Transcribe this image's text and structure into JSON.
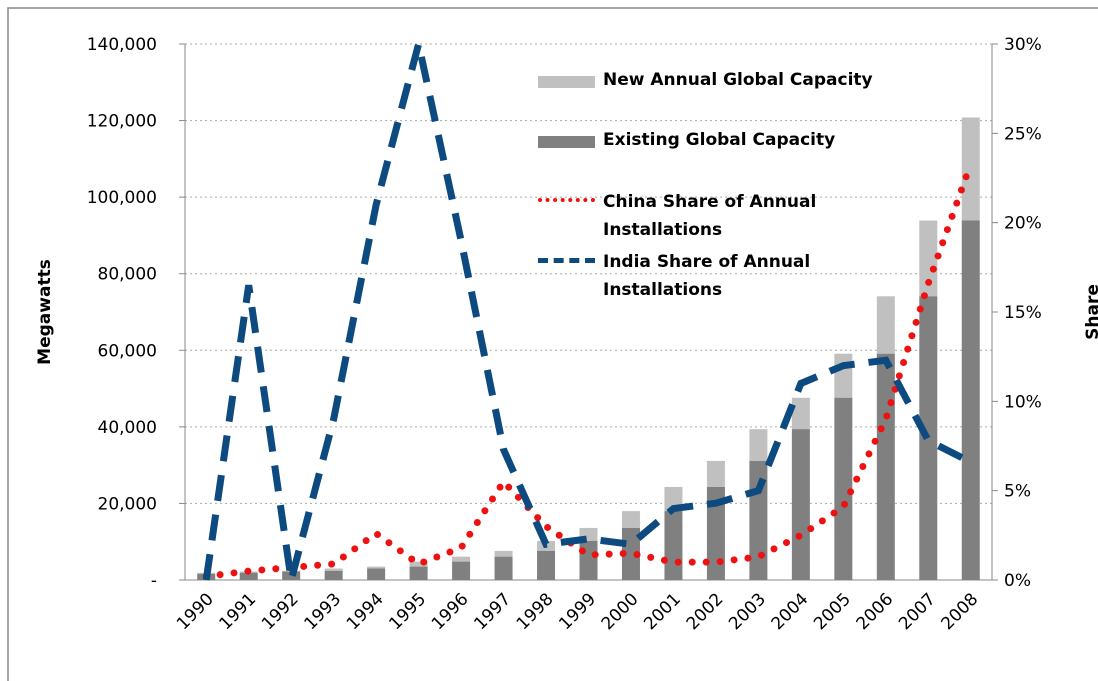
{
  "chart_data": {
    "type": "bar-line",
    "y_label": "Megawatts",
    "y2_label": "Share",
    "categories": [
      "1990",
      "1991",
      "1992",
      "1993",
      "1994",
      "1995",
      "1996",
      "1997",
      "1998",
      "1999",
      "2000",
      "2001",
      "2002",
      "2003",
      "2004",
      "2005",
      "2006",
      "2007",
      "2008"
    ],
    "series": [
      {
        "name": "New Annual Global Capacity",
        "color": "#c0c0c0",
        "kind": "bar",
        "stack": true,
        "values": [
          300,
          300,
          200,
          600,
          500,
          1300,
          1300,
          1500,
          2600,
          3400,
          4400,
          6300,
          6800,
          8300,
          8200,
          11500,
          15000,
          19800,
          26900
        ]
      },
      {
        "name": "Existing Global Capacity",
        "color": "#808080",
        "kind": "bar",
        "values": [
          1600,
          1900,
          2200,
          2400,
          3000,
          3500,
          4800,
          6100,
          7600,
          10200,
          13600,
          18000,
          24300,
          31100,
          39400,
          47600,
          59100,
          74100,
          93900
        ]
      },
      {
        "name": "China Share of Annual Installations",
        "color": "#ee1111",
        "kind": "dotted",
        "axis": "y2",
        "values": [
          0.2,
          0.5,
          0.7,
          0.9,
          2.6,
          0.9,
          1.8,
          5.5,
          3.0,
          1.4,
          1.5,
          1.0,
          1.0,
          1.3,
          2.5,
          4.1,
          9.0,
          16.6,
          23.3
        ]
      },
      {
        "name": "India Share of Annual Installations",
        "color": "#0d4a80",
        "kind": "dashed",
        "axis": "y2",
        "values": [
          0,
          16.5,
          0,
          9,
          21,
          30,
          19,
          7.3,
          2.0,
          2.3,
          2.0,
          4.0,
          4.3,
          5.0,
          11.0,
          12.0,
          12.3,
          7.8,
          6.6
        ]
      }
    ],
    "ylim": [
      0,
      140000
    ],
    "yticks": [
      {
        "value": 0,
        "label": "-"
      },
      {
        "value": 20000,
        "label": "20,000"
      },
      {
        "value": 40000,
        "label": "40,000"
      },
      {
        "value": 60000,
        "label": "60,000"
      },
      {
        "value": 80000,
        "label": "80,000"
      },
      {
        "value": 100000,
        "label": "100,000"
      },
      {
        "value": 120000,
        "label": "120,000"
      },
      {
        "value": 140000,
        "label": "140,000"
      }
    ],
    "y2lim": [
      0,
      30
    ],
    "y2ticks": [
      {
        "value": 0,
        "label": "0%"
      },
      {
        "value": 5,
        "label": "5%"
      },
      {
        "value": 10,
        "label": "10%"
      },
      {
        "value": 15,
        "label": "15%"
      },
      {
        "value": 20,
        "label": "20%"
      },
      {
        "value": 25,
        "label": "25%"
      },
      {
        "value": 30,
        "label": "30%"
      }
    ],
    "grid": true
  }
}
